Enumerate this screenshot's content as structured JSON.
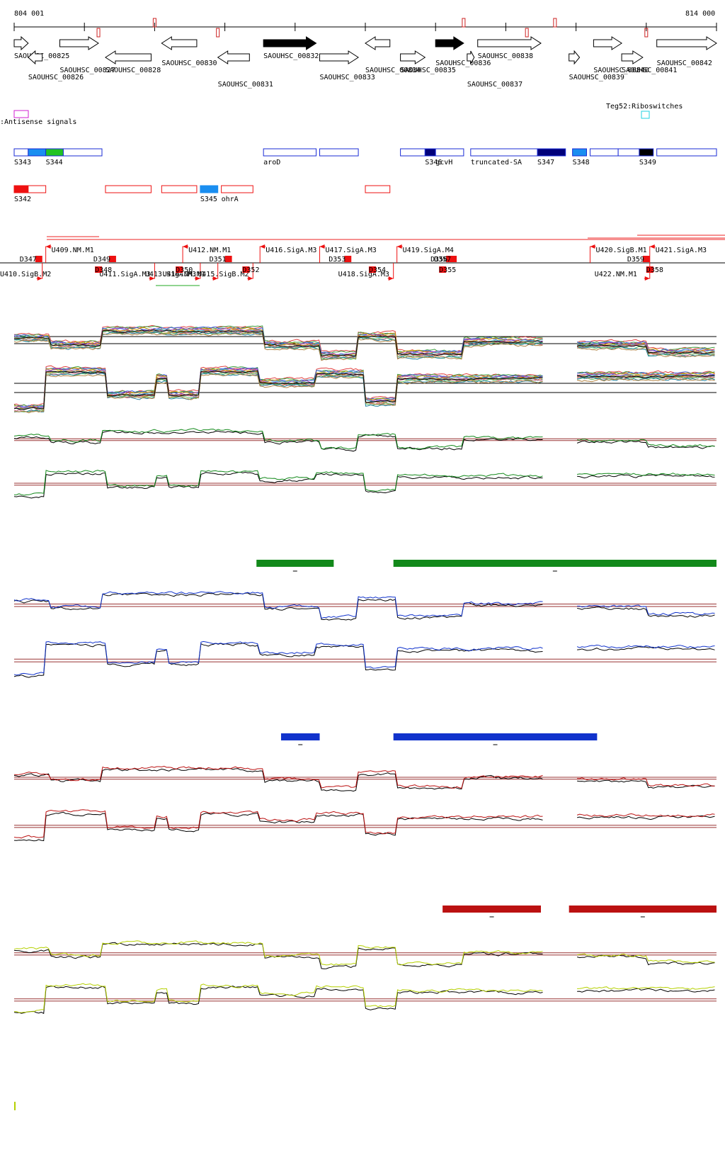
{
  "coords": {
    "start": "804 001",
    "end": "814 000"
  },
  "genes": [
    {
      "id": "SAOUHSC_00825",
      "strand": "+",
      "from": 0,
      "to": 2,
      "filled": false
    },
    {
      "id": "SAOUHSC_00826",
      "strand": "-",
      "from": 2,
      "to": 4,
      "filled": false
    },
    {
      "id": "SAOUHSC_00827",
      "strand": "+",
      "from": 6.5,
      "to": 12,
      "filled": false
    },
    {
      "id": "SAOUHSC_00828",
      "strand": "-",
      "from": 13,
      "to": 19.5,
      "filled": false
    },
    {
      "id": "SAOUHSC_00830",
      "strand": "-",
      "from": 21,
      "to": 26,
      "filled": false
    },
    {
      "id": "SAOUHSC_00831",
      "strand": "-",
      "from": 29,
      "to": 33.5,
      "filled": false
    },
    {
      "id": "SAOUHSC_00832",
      "strand": "+",
      "from": 35.5,
      "to": 43,
      "filled": true
    },
    {
      "id": "SAOUHSC_00833",
      "strand": "+",
      "from": 43.5,
      "to": 49,
      "filled": false
    },
    {
      "id": "SAOUHSC_00834",
      "strand": "-",
      "from": 50,
      "to": 53.5,
      "filled": false
    },
    {
      "id": "SAOUHSC_00835",
      "strand": "+",
      "from": 55,
      "to": 58.5,
      "filled": false
    },
    {
      "id": "SAOUHSC_00836",
      "strand": "+",
      "from": 60,
      "to": 64,
      "filled": true
    },
    {
      "id": "SAOUHSC_00837",
      "strand": "+",
      "from": 64.5,
      "to": 65.5,
      "filled": false
    },
    {
      "id": "SAOUHSC_00838",
      "strand": "+",
      "from": 66,
      "to": 75,
      "filled": false
    },
    {
      "id": "SAOUHSC_00839",
      "strand": "+",
      "from": 79,
      "to": 80.5,
      "filled": false
    },
    {
      "id": "SAOUHSC_00840",
      "strand": "+",
      "from": 82.5,
      "to": 86.5,
      "filled": false
    },
    {
      "id": "SAOUHSC_00841",
      "strand": "+",
      "from": 86.5,
      "to": 89.5,
      "filled": false
    },
    {
      "id": "SAOUHSC_00842",
      "strand": "+",
      "from": 91.5,
      "to": 100,
      "filled": false
    }
  ],
  "legend": {
    "antisense": ":Antisense signals",
    "riboswitch": "Teg52:Riboswitches"
  },
  "features_top": [
    {
      "label": "S343",
      "from": 0,
      "to": 2,
      "color": "#ffffff",
      "edge": "#1a2bd6"
    },
    {
      "label": "",
      "from": 2,
      "to": 4.5,
      "color": "#1a8ef0",
      "edge": "#1a2bd6"
    },
    {
      "label": "S344",
      "from": 4.5,
      "to": 7,
      "color": "#22c322",
      "edge": "#1a2bd6"
    },
    {
      "label": "",
      "from": 7,
      "to": 12.5,
      "color": "#ffffff",
      "edge": "#1a2bd6"
    },
    {
      "label": "aroD",
      "from": 35.5,
      "to": 43,
      "color": "#ffffff",
      "edge": "#1a2bd6"
    },
    {
      "label": "",
      "from": 43.5,
      "to": 49,
      "color": "#ffffff",
      "edge": "#1a2bd6"
    },
    {
      "label": "",
      "from": 55,
      "to": 58.5,
      "color": "#ffffff",
      "edge": "#1a2bd6"
    },
    {
      "label": "S346",
      "from": 58.5,
      "to": 60,
      "color": "#00007a",
      "edge": "#1a2bd6"
    },
    {
      "label": "gcvH",
      "from": 60,
      "to": 64,
      "color": "#ffffff",
      "edge": "#1a2bd6"
    },
    {
      "label": "truncated-SA",
      "from": 65,
      "to": 74.5,
      "color": "#ffffff",
      "edge": "#1a2bd6"
    },
    {
      "label": "S347",
      "from": 74.5,
      "to": 78.5,
      "color": "#00007a",
      "edge": "#1a2bd6"
    },
    {
      "label": "S348",
      "from": 79.5,
      "to": 81.5,
      "color": "#1a8ef0",
      "edge": "#1a2bd6"
    },
    {
      "label": "",
      "from": 82,
      "to": 86,
      "color": "#ffffff",
      "edge": "#1a2bd6"
    },
    {
      "label": "",
      "from": 86,
      "to": 89,
      "color": "#ffffff",
      "edge": "#1a2bd6"
    },
    {
      "label": "S349",
      "from": 89,
      "to": 91,
      "color": "#000000",
      "edge": "#1a2bd6"
    },
    {
      "label": "",
      "from": 91.5,
      "to": 100,
      "color": "#ffffff",
      "edge": "#1a2bd6"
    }
  ],
  "features_bottom": [
    {
      "label": "S342",
      "from": 0,
      "to": 2,
      "color": "#ee1111",
      "edge": "#ee1111"
    },
    {
      "label": "",
      "from": 2,
      "to": 4.5,
      "color": "#ffffff",
      "edge": "#ee1111"
    },
    {
      "label": "",
      "from": 13,
      "to": 19.5,
      "color": "#ffffff",
      "edge": "#ee1111"
    },
    {
      "label": "",
      "from": 21,
      "to": 26,
      "color": "#ffffff",
      "edge": "#ee1111"
    },
    {
      "label": "S345",
      "from": 26.5,
      "to": 29,
      "color": "#1a8ef0",
      "edge": "#1a8ef0"
    },
    {
      "label": "ohrA",
      "from": 29.5,
      "to": 34,
      "color": "#ffffff",
      "edge": "#ee1111"
    },
    {
      "label": "",
      "from": 50,
      "to": 53.5,
      "color": "#ffffff",
      "edge": "#ee1111"
    }
  ],
  "promoters_top": [
    {
      "label": "U409.NM.M1",
      "pos": 4.5
    },
    {
      "label": "U412.NM.M1",
      "pos": 24
    },
    {
      "label": "U416.SigA.M3",
      "pos": 35
    },
    {
      "label": "U417.SigA.M3",
      "pos": 43.5
    },
    {
      "label": "U419.SigA.M4",
      "pos": 54.5
    },
    {
      "label": "U420.SigB.M1",
      "pos": 82
    },
    {
      "label": "U421.SigA.M3",
      "pos": 90.5
    }
  ],
  "promoters_bottom": [
    {
      "label": "U410.SigB.M2",
      "pos": 4
    },
    {
      "label": "U411.SigA.M3",
      "pos": 20
    },
    {
      "label": "U413.SigA.M3",
      "pos": 26.5
    },
    {
      "label": "U414.NM.M1",
      "pos": 29
    },
    {
      "label": "U415.SigB.M2",
      "pos": 34
    },
    {
      "label": "U418.SigA.M3",
      "pos": 54
    },
    {
      "label": "U422.NM.M1",
      "pos": 90.5
    }
  ],
  "terminators": [
    {
      "label": "D347",
      "pos": 3
    },
    {
      "label": "D348",
      "pos": 11.5
    },
    {
      "label": "D349",
      "pos": 13.5
    },
    {
      "label": "D350",
      "pos": 23
    },
    {
      "label": "D351",
      "pos": 30
    },
    {
      "label": "D352",
      "pos": 32.5
    },
    {
      "label": "D353",
      "pos": 47
    },
    {
      "label": "D354",
      "pos": 50.5
    },
    {
      "label": "D356",
      "pos": 61.5
    },
    {
      "label": "D355",
      "pos": 60.5
    },
    {
      "label": "D357",
      "pos": 62
    },
    {
      "label": "D358",
      "pos": 90
    },
    {
      "label": "D359",
      "pos": 89.5
    }
  ],
  "conditions": [
    {
      "color": "#12891a",
      "bars": [
        {
          "from": 34.5,
          "to": 45.5
        },
        {
          "from": 54,
          "to": 100
        }
      ]
    },
    {
      "color": "#1133cc",
      "bars": [
        {
          "from": 38,
          "to": 43.5
        },
        {
          "from": 54,
          "to": 83
        }
      ]
    },
    {
      "color": "#bb1111",
      "bars": [
        {
          "from": 61,
          "to": 75
        },
        {
          "from": 79,
          "to": 100
        }
      ]
    },
    {
      "color": "#b5d000",
      "bars": []
    }
  ],
  "chart_data": [
    {
      "type": "line",
      "title": "",
      "xlabel": "",
      "ylabel": "",
      "x": [
        "804 001",
        "814 000"
      ],
      "note_gap": "no data around 75-80",
      "segments_strand_plus": [
        {
          "from": 0,
          "to": 5,
          "level": 0.55
        },
        {
          "from": 5,
          "to": 12.5,
          "level": 0.35
        },
        {
          "from": 12.5,
          "to": 35.5,
          "level": 0.75
        },
        {
          "from": 35.5,
          "to": 43.5,
          "level": 0.35
        },
        {
          "from": 43.5,
          "to": 49,
          "level": 0.05
        },
        {
          "from": 49,
          "to": 54.5,
          "level": 0.6
        },
        {
          "from": 54.5,
          "to": 64,
          "level": 0.1
        },
        {
          "from": 64,
          "to": 75.5,
          "level": 0.45
        },
        {
          "from": 80,
          "to": 90,
          "level": 0.35
        },
        {
          "from": 90,
          "to": 100,
          "level": 0.15
        }
      ],
      "segments_strand_minus": [
        {
          "from": 0,
          "to": 4.5,
          "level": 0.05
        },
        {
          "from": 4.5,
          "to": 13,
          "level": 0.85
        },
        {
          "from": 13,
          "to": 20,
          "level": 0.35
        },
        {
          "from": 20,
          "to": 22,
          "level": 0.7
        },
        {
          "from": 22,
          "to": 26.5,
          "level": 0.35
        },
        {
          "from": 26.5,
          "to": 35,
          "level": 0.85
        },
        {
          "from": 35,
          "to": 43,
          "level": 0.6
        },
        {
          "from": 43,
          "to": 50,
          "level": 0.8
        },
        {
          "from": 50,
          "to": 54.5,
          "level": 0.2
        },
        {
          "from": 54.5,
          "to": 75.5,
          "level": 0.7
        },
        {
          "from": 80,
          "to": 100,
          "level": 0.75
        }
      ]
    }
  ]
}
